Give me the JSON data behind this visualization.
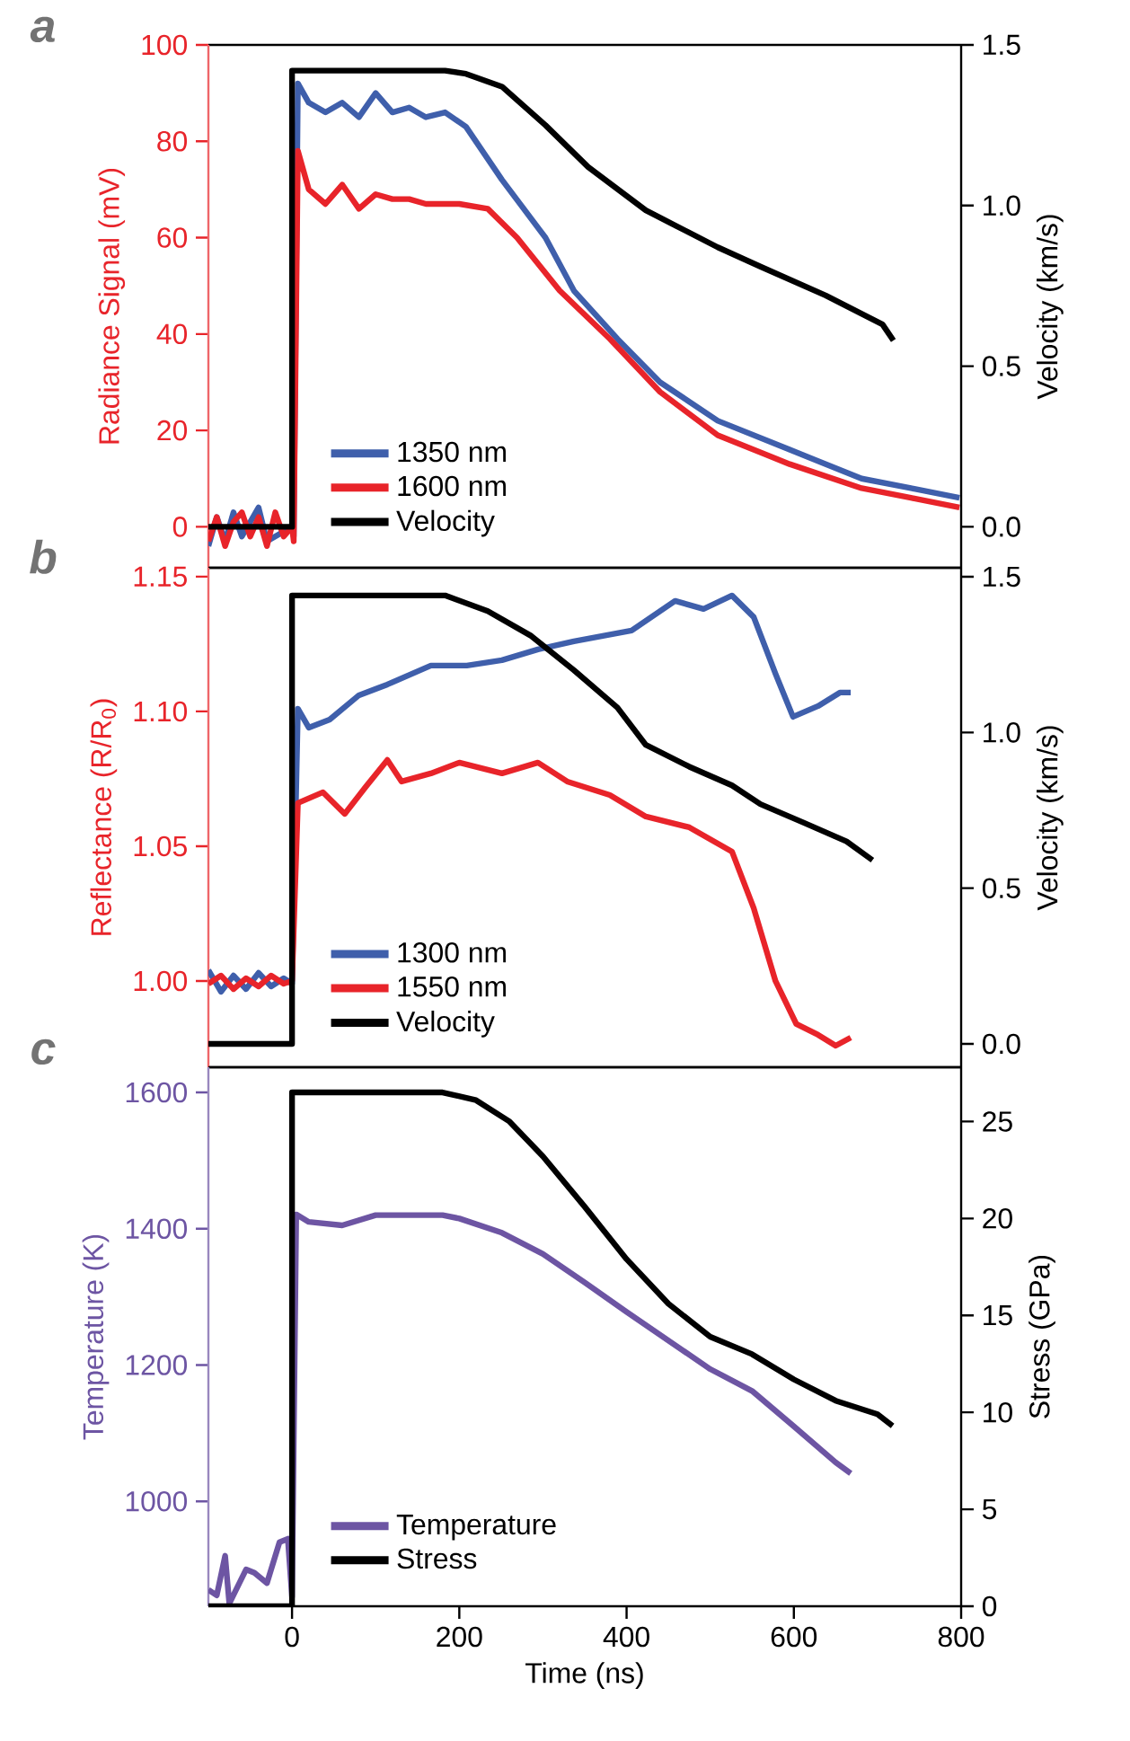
{
  "chart_data": [
    {
      "type": "line",
      "title": "a",
      "ylabel": "Radiance Signal (mV)",
      "y2label": "Velocity (km/s)",
      "xlim": [
        -100,
        800
      ],
      "ylim": [
        -8.5,
        100
      ],
      "yticks": [
        0,
        20,
        40,
        60,
        80,
        100
      ],
      "y2lim": [
        -0.1275,
        1.5
      ],
      "y2ticks": [
        {
          "value": 0,
          "label": "0.0"
        },
        {
          "value": 0.5,
          "label": "0.5"
        },
        {
          "value": 1,
          "label": "1.0"
        },
        {
          "value": 1.5,
          "label": "1.5"
        }
      ],
      "tick_labels": "y",
      "legend": "bottom left",
      "series": [
        {
          "name": "1350 nm",
          "color": "#3f5fab",
          "x": [
            -100,
            -90,
            -80,
            -70,
            -60,
            -50,
            -40,
            -30,
            -20,
            -10,
            0,
            2,
            7,
            20,
            40,
            60,
            80,
            100,
            120,
            140,
            160,
            183,
            208,
            251,
            303,
            337,
            389,
            440,
            509,
            595,
            681,
            740,
            798
          ],
          "values": [
            -4,
            2,
            -3,
            3,
            -2,
            1,
            4,
            -3,
            null,
            -1,
            0,
            -2,
            92,
            88,
            86,
            88,
            85,
            90,
            86,
            87,
            85,
            86,
            83,
            72,
            60,
            49,
            39,
            30,
            22,
            16,
            10,
            8,
            6
          ]
        },
        {
          "name": "1600 nm",
          "color": "#e8242a",
          "x": [
            -100,
            -90,
            -80,
            -70,
            -60,
            -50,
            -40,
            -30,
            -20,
            -10,
            0,
            2,
            7,
            20,
            40,
            60,
            80,
            100,
            120,
            140,
            160,
            200,
            234,
            269,
            320,
            380,
            440,
            509,
            595,
            681,
            740,
            798
          ],
          "values": [
            -3,
            2,
            -4,
            1,
            3,
            -2,
            2,
            -4,
            3,
            -2,
            0,
            -3,
            78,
            70,
            67,
            71,
            66,
            69,
            68,
            68,
            67,
            67,
            66,
            60,
            49,
            39,
            28,
            19,
            13,
            8,
            6,
            4
          ]
        },
        {
          "name": "Velocity",
          "color": "#000000",
          "axis": "y2",
          "x": [
            -100,
            0,
            0,
            183,
            208,
            251,
            303,
            354,
            423,
            509,
            560,
            638,
            706,
            719
          ],
          "values": [
            0,
            0,
            1.42,
            1.42,
            1.41,
            1.37,
            1.25,
            1.12,
            0.985,
            0.87,
            0.81,
            0.72,
            0.63,
            0.58
          ]
        }
      ]
    },
    {
      "type": "line",
      "title": "b",
      "ylabel": "Reflectance (R/R$_{0}$)",
      "y2label": "Velocity (km/s)",
      "xlim": [
        -100,
        800
      ],
      "ylim": [
        0.968,
        1.1533
      ],
      "yticks": [
        {
          "value": 1,
          "label": "1.00"
        },
        1.05,
        {
          "value": 1.1,
          "label": "1.10"
        },
        1.15
      ],
      "y2lim": [
        -0.075,
        1.529
      ],
      "y2ticks": [
        {
          "value": 0,
          "label": "0.0"
        },
        {
          "value": 0.5,
          "label": "0.5"
        },
        {
          "value": 1,
          "label": "1.0"
        },
        {
          "value": 1.5,
          "label": "1.5"
        }
      ],
      "tick_labels": "y",
      "legend": "bottom left",
      "series": [
        {
          "name": "1300 nm",
          "color": "#3f5fab",
          "x": [
            -100,
            -85,
            -70,
            -55,
            -40,
            -25,
            -10,
            0,
            7,
            20,
            45,
            80,
            114,
            166,
            209,
            251,
            294,
            337,
            406,
            458,
            492,
            526,
            552,
            578,
            599,
            629,
            655,
            668
          ],
          "values": [
            1.004,
            0.996,
            1.002,
            0.997,
            1.003,
            0.998,
            1.001,
            0.999,
            1.101,
            1.094,
            1.097,
            1.106,
            1.11,
            1.117,
            1.117,
            1.119,
            1.123,
            1.126,
            1.13,
            1.141,
            1.138,
            1.143,
            1.135,
            1.114,
            1.098,
            1.102,
            1.107,
            1.107
          ]
        },
        {
          "name": "1550 nm",
          "color": "#e8242a",
          "x": [
            -100,
            -85,
            -70,
            -55,
            -40,
            -25,
            -10,
            0,
            7,
            37,
            63,
            88,
            114,
            131,
            166,
            200,
            251,
            294,
            329,
            380,
            423,
            475,
            526,
            552,
            578,
            603,
            629,
            650,
            668
          ],
          "values": [
            0.999,
            1.002,
            0.997,
            1.001,
            0.998,
            1.002,
            0.999,
            1.0,
            1.066,
            1.07,
            1.062,
            1.072,
            1.082,
            1.074,
            1.077,
            1.081,
            1.077,
            1.081,
            1.074,
            1.069,
            1.061,
            1.057,
            1.048,
            1.027,
            1.0,
            0.984,
            0.98,
            0.976,
            0.979
          ]
        },
        {
          "name": "Velocity",
          "color": "#000000",
          "axis": "y2",
          "x": [
            -100,
            0,
            0,
            183,
            234,
            286,
            337,
            389,
            423,
            475,
            526,
            560,
            612,
            663,
            694
          ],
          "values": [
            0,
            0,
            1.44,
            1.44,
            1.39,
            1.31,
            1.2,
            1.08,
            0.96,
            0.89,
            0.83,
            0.77,
            0.71,
            0.65,
            0.59
          ]
        }
      ]
    },
    {
      "type": "line",
      "title": "c",
      "xlabel": "Time (ns)",
      "ylabel": "Temperature (K)",
      "y2label": "Stress (GPa)",
      "xlim": [
        -100,
        800
      ],
      "xticks": [
        0,
        200,
        400,
        600,
        800
      ],
      "ylim": [
        846,
        1637
      ],
      "yticks": [
        1000,
        1200,
        1400,
        1600
      ],
      "y2lim": [
        0,
        27.8
      ],
      "y2ticks": [
        0,
        5,
        10,
        15,
        20,
        25
      ],
      "legend": "bottom left",
      "series": [
        {
          "name": "Temperature",
          "color": "#6d55a3",
          "x": [
            -100,
            -90,
            -80,
            -75,
            -55,
            -45,
            -30,
            -15,
            -5,
            0,
            5,
            20,
            60,
            100,
            180,
            200,
            251,
            300,
            350,
            400,
            450,
            500,
            550,
            600,
            650,
            668
          ],
          "values": [
            870,
            862,
            920,
            850,
            900,
            895,
            880,
            940,
            945,
            860,
            1421,
            1410,
            1405,
            1420,
            1420,
            1415,
            1394,
            1363,
            1321,
            1278,
            1236,
            1194,
            1162,
            1110,
            1057,
            1041
          ]
        },
        {
          "name": "Stress",
          "color": "#000000",
          "axis": "y2",
          "x": [
            -100,
            0,
            0,
            180,
            220,
            260,
            300,
            350,
            400,
            450,
            500,
            550,
            600,
            650,
            700,
            718
          ],
          "values": [
            0,
            0,
            26.5,
            26.5,
            26.1,
            25,
            23.2,
            20.6,
            17.9,
            15.6,
            13.9,
            13,
            11.7,
            10.6,
            9.9,
            9.3
          ]
        }
      ]
    }
  ]
}
